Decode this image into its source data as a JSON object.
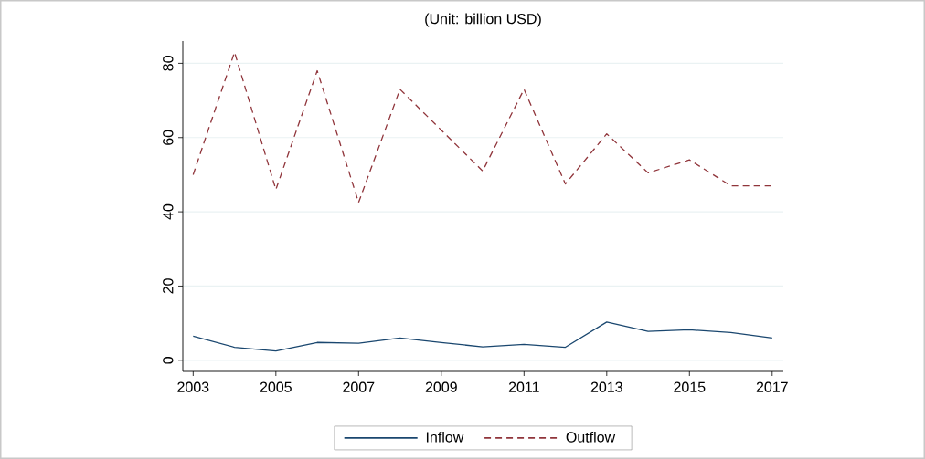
{
  "chart_data": {
    "type": "line",
    "title": "(Unit: billion USD)",
    "x": [
      2003,
      2004,
      2005,
      2006,
      2007,
      2008,
      2009,
      2010,
      2011,
      2012,
      2013,
      2014,
      2015,
      2016,
      2017
    ],
    "series": [
      {
        "name": "Inflow",
        "color": "#1a476f",
        "line_style": "solid",
        "values": [
          6.5,
          3.5,
          2.5,
          4.8,
          4.6,
          6.0,
          4.8,
          3.6,
          4.3,
          3.5,
          10.3,
          7.8,
          8.2,
          7.5,
          6.0
        ]
      },
      {
        "name": "Outflow",
        "color": "#90353b",
        "line_style": "dashed",
        "values": [
          50,
          83,
          46,
          78,
          42.5,
          73,
          62,
          51,
          73,
          47.5,
          61,
          50.5,
          54,
          47,
          47
        ]
      }
    ],
    "xlim": [
      2002.75,
      2017.27
    ],
    "xticks": [
      2003,
      2005,
      2007,
      2009,
      2011,
      2013,
      2015,
      2017
    ],
    "ylim": [
      -3,
      86
    ],
    "yticks": [
      0,
      20,
      40,
      60,
      80
    ],
    "grid": "y",
    "legend": "bottom",
    "marker": "none"
  }
}
